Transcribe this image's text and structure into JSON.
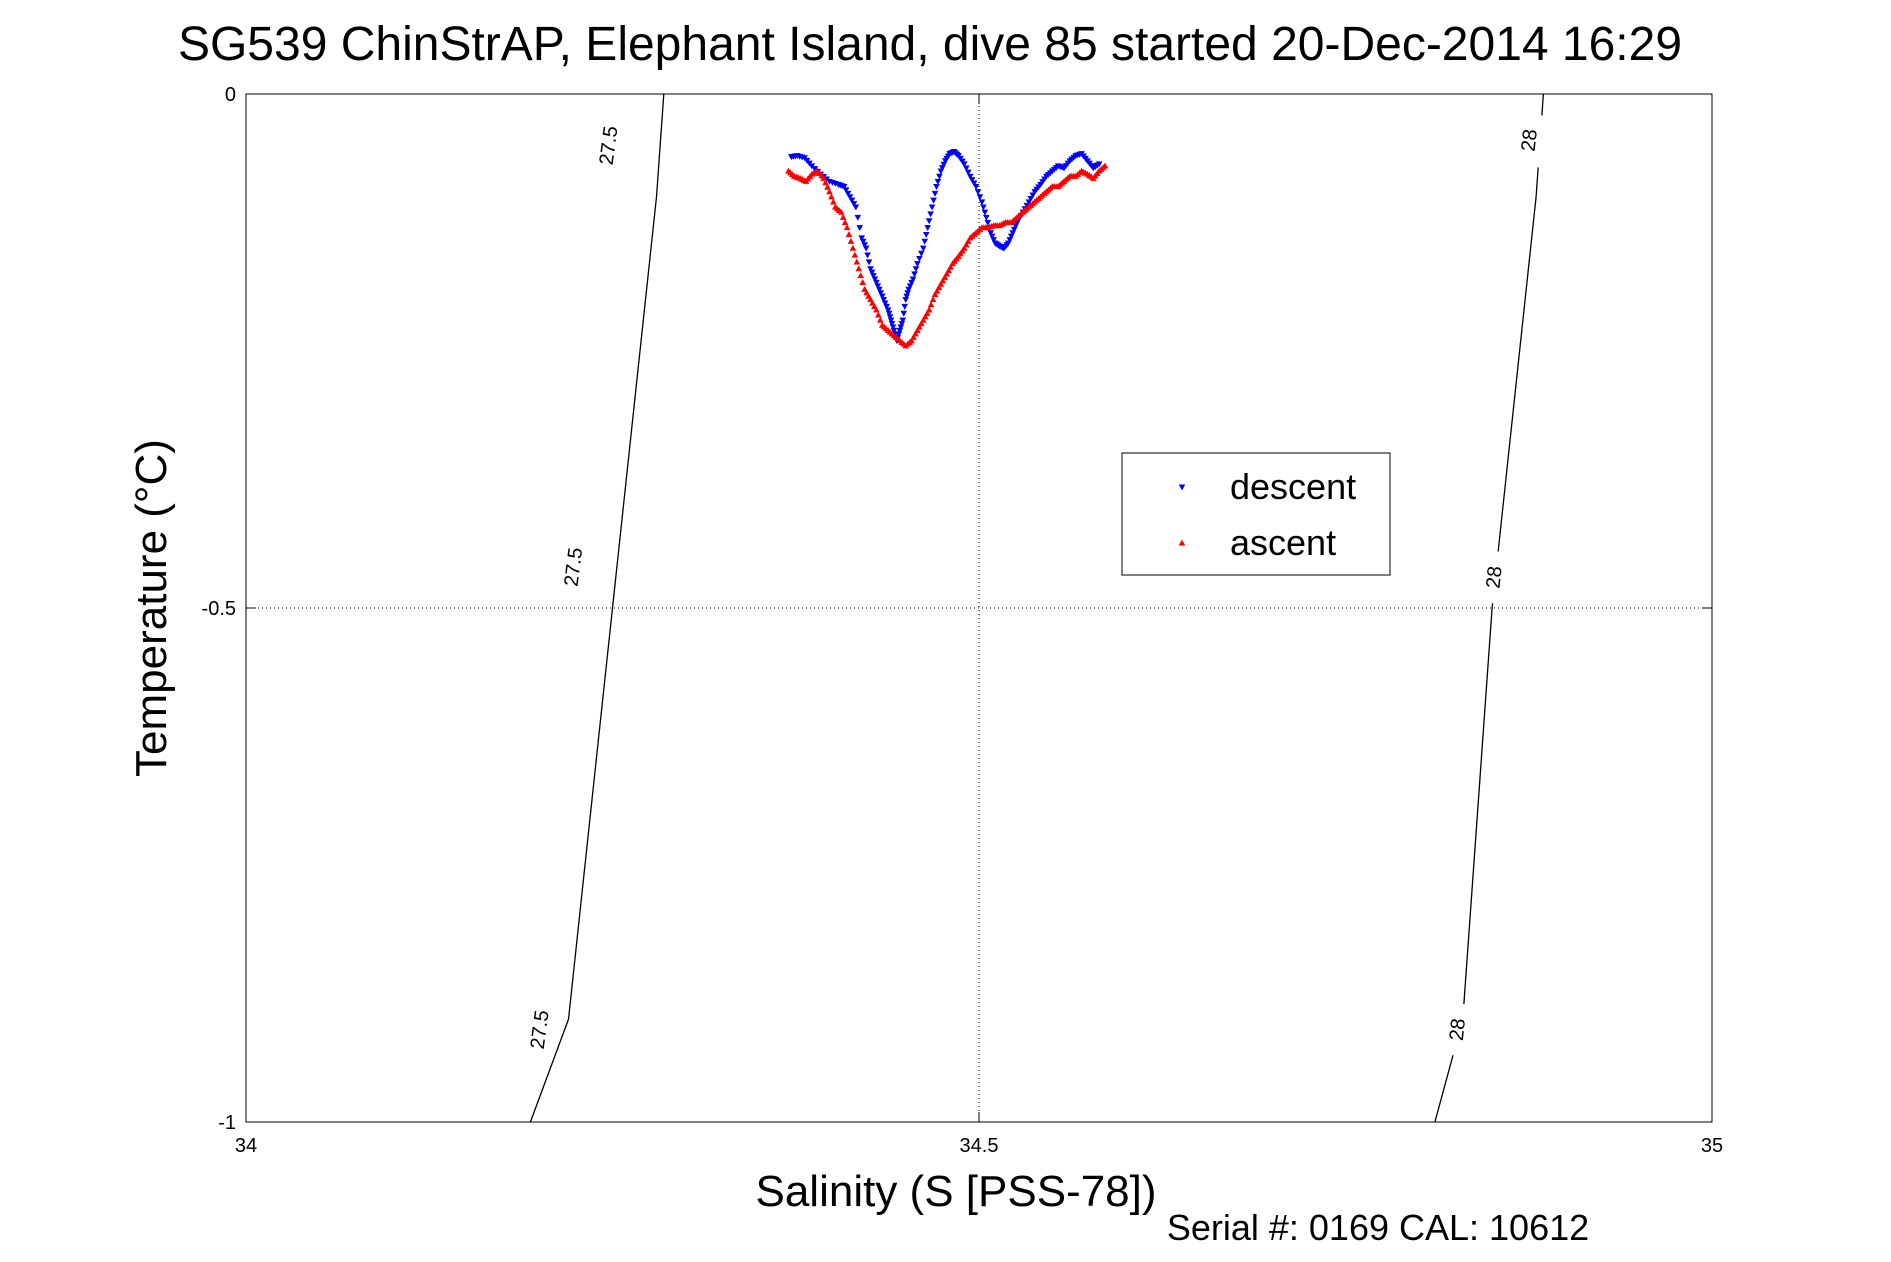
{
  "chart_data": {
    "type": "scatter",
    "title": "SG539 ChinStrAP, Elephant Island, dive 85 started 20-Dec-2014 16:29",
    "xlabel": "Salinity (S [PSS-78])",
    "ylabel": "Temperature (°C)",
    "xlim": [
      34,
      35
    ],
    "ylim": [
      -1,
      0
    ],
    "xticks": [
      34,
      34.5,
      35
    ],
    "yticks": [
      -1,
      -0.5,
      0
    ],
    "xtick_labels": [
      "34",
      "34.5",
      "35"
    ],
    "ytick_labels": [
      "-1",
      "-0.5",
      "0"
    ],
    "grid": true,
    "legend_position": "right",
    "footer": "Serial #: 0169 CAL: 10612",
    "isopycnals": [
      {
        "label": "27.5",
        "points": [
          [
            34.194,
            -1
          ],
          [
            34.22,
            -0.9
          ],
          [
            34.25,
            -0.5
          ],
          [
            34.28,
            -0.1
          ],
          [
            34.285,
            0
          ]
        ],
        "label_points": [
          [
            34.2,
            -0.91
          ],
          [
            34.223,
            -0.46
          ],
          [
            34.247,
            -0.05
          ]
        ]
      },
      {
        "label": "28",
        "points": [
          [
            34.811,
            -1
          ],
          [
            34.83,
            -0.9
          ],
          [
            34.85,
            -0.5
          ],
          [
            34.88,
            -0.1
          ],
          [
            34.885,
            0
          ]
        ],
        "label_points": [
          [
            34.826,
            -0.91
          ],
          [
            34.851,
            -0.47
          ],
          [
            34.875,
            -0.045
          ]
        ]
      }
    ],
    "series": [
      {
        "name": "descent",
        "color": "#0000ff",
        "marker": "triangle-down",
        "x": [
          34.372,
          34.376,
          34.381,
          34.386,
          34.392,
          34.398,
          34.404,
          34.408,
          34.412,
          34.416,
          34.42,
          34.423,
          34.426,
          34.429,
          34.432,
          34.435,
          34.438,
          34.44,
          34.442,
          34.444,
          34.446,
          34.448,
          34.45,
          34.452,
          34.455,
          34.458,
          34.462,
          34.465,
          34.468,
          34.471,
          34.474,
          34.477,
          34.48,
          34.483,
          34.486,
          34.49,
          34.494,
          34.498,
          34.502,
          34.505,
          34.508,
          34.511,
          34.514,
          34.517,
          34.52,
          34.523,
          34.526,
          34.53,
          34.534,
          34.538,
          34.542,
          34.546,
          34.55,
          34.554,
          34.558,
          34.562,
          34.566,
          34.57,
          34.574,
          34.578,
          34.582
        ],
        "y": [
          -0.061,
          -0.06,
          -0.062,
          -0.07,
          -0.078,
          -0.085,
          -0.088,
          -0.09,
          -0.1,
          -0.11,
          -0.14,
          -0.15,
          -0.17,
          -0.18,
          -0.19,
          -0.2,
          -0.21,
          -0.22,
          -0.23,
          -0.24,
          -0.23,
          -0.22,
          -0.2,
          -0.19,
          -0.18,
          -0.165,
          -0.15,
          -0.13,
          -0.11,
          -0.09,
          -0.075,
          -0.065,
          -0.058,
          -0.056,
          -0.06,
          -0.068,
          -0.08,
          -0.09,
          -0.105,
          -0.12,
          -0.135,
          -0.145,
          -0.148,
          -0.15,
          -0.145,
          -0.135,
          -0.125,
          -0.115,
          -0.105,
          -0.095,
          -0.088,
          -0.08,
          -0.075,
          -0.07,
          -0.072,
          -0.065,
          -0.06,
          -0.058,
          -0.065,
          -0.072,
          -0.068
        ]
      },
      {
        "name": "ascent",
        "color": "#ff0000",
        "marker": "triangle-up",
        "x": [
          34.37,
          34.374,
          34.378,
          34.382,
          34.386,
          34.39,
          34.394,
          34.398,
          34.402,
          34.406,
          34.41,
          34.414,
          34.418,
          34.422,
          34.426,
          34.43,
          34.434,
          34.438,
          34.442,
          34.446,
          34.45,
          34.454,
          34.458,
          34.462,
          34.466,
          34.47,
          34.474,
          34.478,
          34.482,
          34.486,
          34.49,
          34.494,
          34.498,
          34.502,
          34.506,
          34.51,
          34.514,
          34.518,
          34.522,
          34.526,
          34.53,
          34.534,
          34.538,
          34.542,
          34.546,
          34.55,
          34.554,
          34.558,
          34.562,
          34.566,
          34.57,
          34.574,
          34.578,
          34.582,
          34.586
        ],
        "y": [
          -0.075,
          -0.08,
          -0.082,
          -0.085,
          -0.078,
          -0.075,
          -0.082,
          -0.095,
          -0.11,
          -0.115,
          -0.13,
          -0.15,
          -0.17,
          -0.19,
          -0.2,
          -0.21,
          -0.225,
          -0.23,
          -0.235,
          -0.24,
          -0.245,
          -0.24,
          -0.23,
          -0.22,
          -0.21,
          -0.195,
          -0.185,
          -0.175,
          -0.165,
          -0.158,
          -0.15,
          -0.14,
          -0.135,
          -0.13,
          -0.13,
          -0.128,
          -0.128,
          -0.125,
          -0.125,
          -0.12,
          -0.115,
          -0.11,
          -0.105,
          -0.1,
          -0.095,
          -0.09,
          -0.09,
          -0.085,
          -0.08,
          -0.08,
          -0.075,
          -0.078,
          -0.082,
          -0.075,
          -0.07
        ]
      }
    ]
  }
}
